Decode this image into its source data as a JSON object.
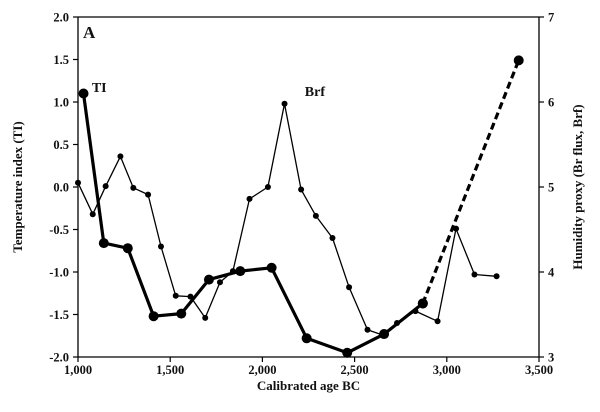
{
  "chart_data": {
    "type": "line",
    "panel_label": "A",
    "xlabel": "Calibrated age BC",
    "ylabel_left": "Temperature index (TI)",
    "ylabel_right": "Humidity proxy (Br flux, Brf)",
    "xlim": [
      1000,
      3500
    ],
    "ylim_left": [
      -2.0,
      2.0
    ],
    "ylim_right": [
      3,
      7
    ],
    "x_ticks": [
      1000,
      1500,
      2000,
      2500,
      3000,
      3500
    ],
    "x_tick_labels": [
      "1,000",
      "1,500",
      "2,000",
      "2,500",
      "3,000",
      "3,500"
    ],
    "y_left_ticks": [
      2.0,
      1.5,
      1.0,
      0.5,
      0.0,
      -0.5,
      -1.0,
      -1.5,
      -2.0
    ],
    "y_left_tick_labels": [
      "2.0",
      "1.5",
      "1.0",
      "0.5",
      "0.0",
      "-0.5",
      "-1.0",
      "-1.5",
      "-2.0"
    ],
    "y_right_ticks": [
      7,
      6,
      5,
      4,
      3
    ],
    "y_right_tick_labels": [
      "7",
      "6",
      "5",
      "4",
      "3"
    ],
    "grid": false,
    "series": [
      {
        "name": "TI",
        "axis": "left",
        "style": "thick",
        "color": "#000000",
        "x": [
          1030,
          1140,
          1270,
          1410,
          1560,
          1710,
          1880,
          2050,
          2240,
          2460,
          2660,
          2870
        ],
        "y": [
          1.1,
          -0.66,
          -0.72,
          -1.52,
          -1.49,
          -1.09,
          -0.99,
          -0.95,
          -1.78,
          -1.95,
          -1.73,
          -1.37
        ]
      },
      {
        "name": "TI (extrapolated)",
        "axis": "left",
        "style": "dashed",
        "color": "#000000",
        "x": [
          2870,
          3390
        ],
        "y": [
          -1.37,
          1.49
        ]
      },
      {
        "name": "Brf",
        "axis": "right",
        "style": "thin",
        "color": "#000000",
        "x": [
          1000,
          1080,
          1150,
          1230,
          1300,
          1380,
          1450,
          1530,
          1610,
          1690,
          1770,
          1840,
          1930,
          2030,
          2120,
          2210,
          2290,
          2380,
          2470,
          2570,
          2650,
          2730,
          2830,
          2950,
          3050,
          3150,
          3270
        ],
        "y": [
          5.05,
          4.68,
          5.01,
          5.36,
          4.99,
          4.91,
          4.3,
          3.72,
          3.71,
          3.46,
          3.88,
          4.01,
          4.86,
          5.0,
          5.98,
          4.97,
          4.66,
          4.4,
          3.82,
          3.32,
          3.26,
          3.4,
          3.54,
          3.42,
          4.51,
          3.97,
          3.95
        ]
      }
    ],
    "annotations": [
      {
        "text": "TI",
        "x": 1075,
        "y": 1.05,
        "axis": "left"
      },
      {
        "text": "Brf",
        "x": 2230,
        "y": 1.0,
        "axis": "left"
      }
    ]
  }
}
